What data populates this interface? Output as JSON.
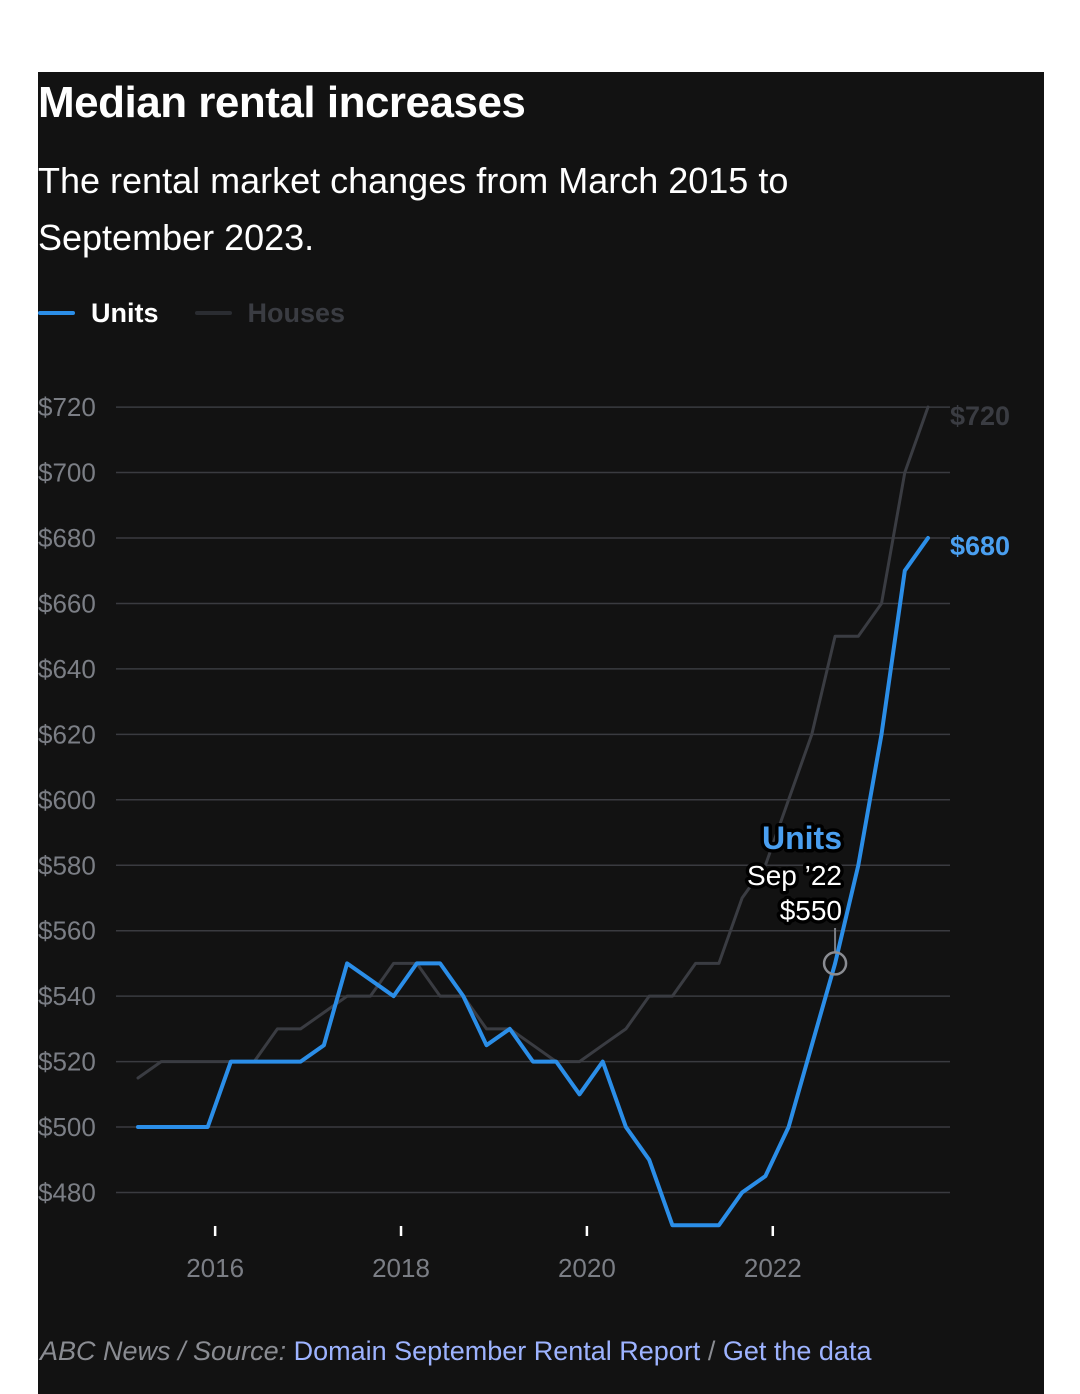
{
  "header": {
    "title": "Median rental increases",
    "subtitle": "The rental market changes from March 2015 to September 2023."
  },
  "legend": {
    "items": [
      {
        "label": "Units",
        "color": "#2b8ee8"
      },
      {
        "label": "Houses",
        "color": "#3a3c42"
      }
    ]
  },
  "tooltip": {
    "series": "Units",
    "date": "Sep ’22",
    "value": "$550"
  },
  "end_labels": {
    "houses": "$720",
    "units": "$680"
  },
  "footer": {
    "prefix": "ABC News / Source:",
    "source_link": "Domain September Rental Report",
    "separator": "/",
    "data_link": "Get the data"
  },
  "chart_data": {
    "type": "line",
    "title": "Median rental increases",
    "subtitle": "The rental market changes from March 2015 to September 2023.",
    "x_ticks": [
      2016,
      2018,
      2020,
      2022
    ],
    "x_range": [
      2015.0,
      2023.9
    ],
    "y_ticks": [
      "$480",
      "$500",
      "$520",
      "$540",
      "$560",
      "$580",
      "$600",
      "$620",
      "$640",
      "$660",
      "$680",
      "$700",
      "$720"
    ],
    "y_range": [
      470,
      720
    ],
    "grid": true,
    "legend_position": "top-left",
    "series": [
      {
        "name": "Houses",
        "color": "#3a3c42",
        "points": [
          [
            2015.17,
            515
          ],
          [
            2015.42,
            520
          ],
          [
            2015.67,
            520
          ],
          [
            2015.92,
            520
          ],
          [
            2016.17,
            520
          ],
          [
            2016.42,
            520
          ],
          [
            2016.67,
            530
          ],
          [
            2016.92,
            530
          ],
          [
            2017.17,
            535
          ],
          [
            2017.42,
            540
          ],
          [
            2017.67,
            540
          ],
          [
            2017.92,
            550
          ],
          [
            2018.17,
            550
          ],
          [
            2018.42,
            540
          ],
          [
            2018.67,
            540
          ],
          [
            2018.92,
            530
          ],
          [
            2019.17,
            530
          ],
          [
            2019.42,
            525
          ],
          [
            2019.67,
            520
          ],
          [
            2019.92,
            520
          ],
          [
            2020.17,
            525
          ],
          [
            2020.42,
            530
          ],
          [
            2020.67,
            540
          ],
          [
            2020.92,
            540
          ],
          [
            2021.17,
            550
          ],
          [
            2021.42,
            550
          ],
          [
            2021.67,
            570
          ],
          [
            2021.92,
            580
          ],
          [
            2022.17,
            600
          ],
          [
            2022.42,
            620
          ],
          [
            2022.67,
            650
          ],
          [
            2022.92,
            650
          ],
          [
            2023.17,
            660
          ],
          [
            2023.42,
            700
          ],
          [
            2023.67,
            720
          ]
        ]
      },
      {
        "name": "Units",
        "color": "#2b8ee8",
        "points": [
          [
            2015.17,
            500
          ],
          [
            2015.42,
            500
          ],
          [
            2015.67,
            500
          ],
          [
            2015.92,
            500
          ],
          [
            2016.17,
            520
          ],
          [
            2016.42,
            520
          ],
          [
            2016.67,
            520
          ],
          [
            2016.92,
            520
          ],
          [
            2017.17,
            525
          ],
          [
            2017.42,
            550
          ],
          [
            2017.67,
            545
          ],
          [
            2017.92,
            540
          ],
          [
            2018.17,
            550
          ],
          [
            2018.42,
            550
          ],
          [
            2018.67,
            540
          ],
          [
            2018.92,
            525
          ],
          [
            2019.17,
            530
          ],
          [
            2019.42,
            520
          ],
          [
            2019.67,
            520
          ],
          [
            2019.92,
            510
          ],
          [
            2020.17,
            520
          ],
          [
            2020.42,
            500
          ],
          [
            2020.67,
            490
          ],
          [
            2020.92,
            470
          ],
          [
            2021.17,
            470
          ],
          [
            2021.42,
            470
          ],
          [
            2021.67,
            480
          ],
          [
            2021.92,
            485
          ],
          [
            2022.17,
            500
          ],
          [
            2022.42,
            525
          ],
          [
            2022.67,
            550
          ],
          [
            2022.92,
            580
          ],
          [
            2023.17,
            620
          ],
          [
            2023.42,
            670
          ],
          [
            2023.67,
            680
          ]
        ]
      }
    ]
  }
}
